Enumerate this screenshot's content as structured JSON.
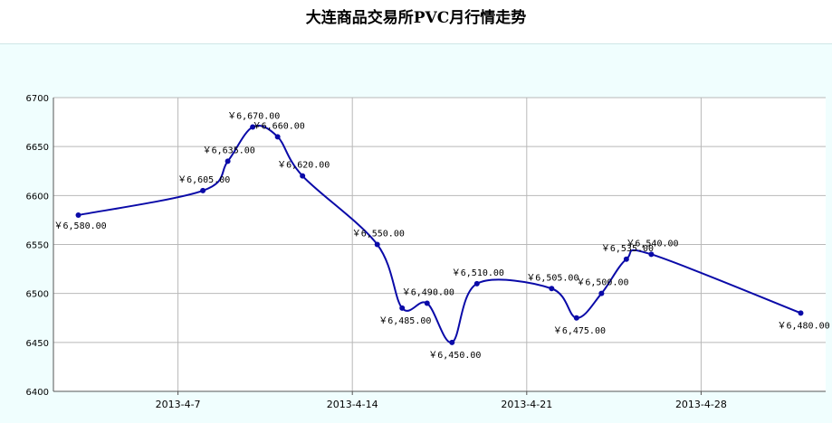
{
  "chart_data": {
    "type": "line",
    "title": "大连商品交易所PVC月行情走势",
    "xlabel": "",
    "ylabel": "",
    "ylim": [
      6400,
      6700
    ],
    "yticks": [
      6400,
      6450,
      6500,
      6550,
      6600,
      6650,
      6700
    ],
    "xlim": [
      "2013-04-02",
      "2013-05-03"
    ],
    "xticks": [
      {
        "date": "2013-04-07",
        "label": "2013-4-7"
      },
      {
        "date": "2013-04-14",
        "label": "2013-4-14"
      },
      {
        "date": "2013-04-21",
        "label": "2013-4-21"
      },
      {
        "date": "2013-04-28",
        "label": "2013-4-28"
      }
    ],
    "grid": true,
    "color": "#0a0aa8",
    "points": [
      {
        "x": "2013-04-03",
        "y": 6580,
        "label": "￥6,580.00"
      },
      {
        "x": "2013-04-08",
        "y": 6605,
        "label": "￥6,605.00"
      },
      {
        "x": "2013-04-09",
        "y": 6635,
        "label": "￥6,635.00"
      },
      {
        "x": "2013-04-10",
        "y": 6670,
        "label": "￥6,670.00"
      },
      {
        "x": "2013-04-11",
        "y": 6660,
        "label": "￥6,660.00"
      },
      {
        "x": "2013-04-12",
        "y": 6620,
        "label": "￥6,620.00"
      },
      {
        "x": "2013-04-15",
        "y": 6550,
        "label": "￥6,550.00"
      },
      {
        "x": "2013-04-16",
        "y": 6485,
        "label": "￥6,485.00"
      },
      {
        "x": "2013-04-17",
        "y": 6490,
        "label": "￥6,490.00"
      },
      {
        "x": "2013-04-18",
        "y": 6450,
        "label": "￥6,450.00"
      },
      {
        "x": "2013-04-19",
        "y": 6510,
        "label": "￥6,510.00"
      },
      {
        "x": "2013-04-22",
        "y": 6505,
        "label": "￥6,505.00"
      },
      {
        "x": "2013-04-23",
        "y": 6475,
        "label": "￥6,475.00"
      },
      {
        "x": "2013-04-24",
        "y": 6500,
        "label": "￥6,500.00"
      },
      {
        "x": "2013-04-25",
        "y": 6535,
        "label": "￥6,535.00"
      },
      {
        "x": "2013-04-26",
        "y": 6540,
        "label": "￥6,540.00"
      },
      {
        "x": "2013-05-02",
        "y": 6480,
        "label": "￥6,480.00"
      }
    ]
  }
}
